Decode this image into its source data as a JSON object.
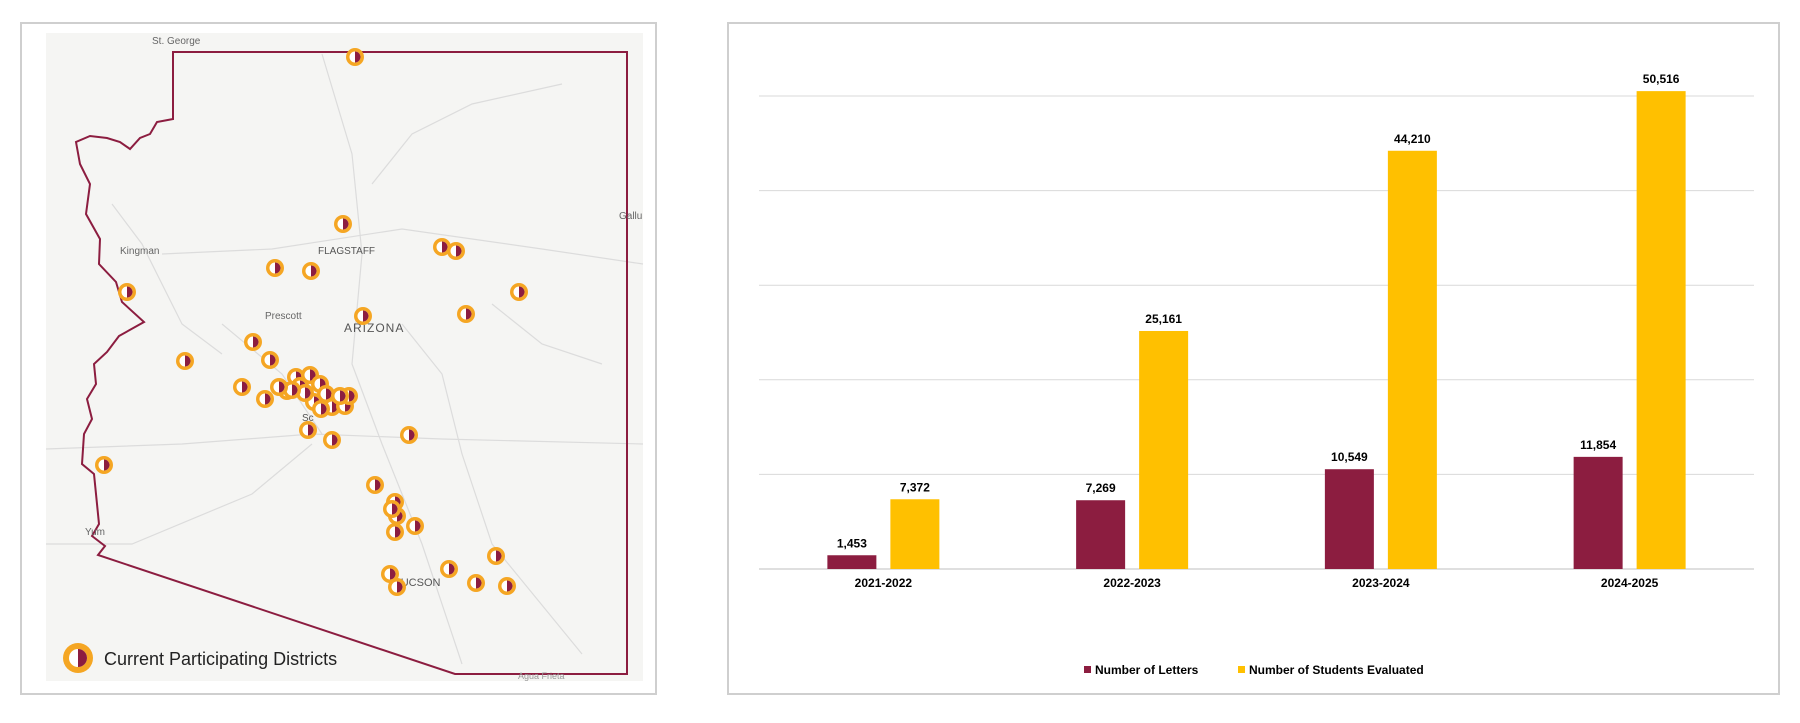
{
  "map": {
    "state_label": "ARIZONA",
    "city_labels": [
      "St. George",
      "Kingman",
      "FLAGSTAFF",
      "Prescott",
      "Sc",
      "TUCSON",
      "Yum",
      "Gallu",
      "Agua Frieta"
    ],
    "legend_label": "Current Participating Districts",
    "colors": {
      "border": "#8c1d40",
      "marker_outer": "#f5a623",
      "marker_inner": "#8c1d40"
    },
    "district_markers_count": 55
  },
  "chart_data": {
    "type": "bar",
    "categories": [
      "2021-2022",
      "2022-2023",
      "2023-2024",
      "2024-2025"
    ],
    "series": [
      {
        "name": "Number of Letters",
        "values": [
          1453,
          7269,
          10549,
          11854
        ],
        "labels": [
          "1,453",
          "7,269",
          "10,549",
          "11,854"
        ],
        "color": "#8c1d40"
      },
      {
        "name": "Number of Students Evaluated",
        "values": [
          7372,
          25161,
          44210,
          50516
        ],
        "labels": [
          "7,372",
          "25,161",
          "44,210",
          "50,516"
        ],
        "color": "#ffc000"
      }
    ],
    "ylim": [
      0,
      50000
    ],
    "grid": true,
    "legend": "bottom",
    "title": "",
    "xlabel": "",
    "ylabel": ""
  }
}
